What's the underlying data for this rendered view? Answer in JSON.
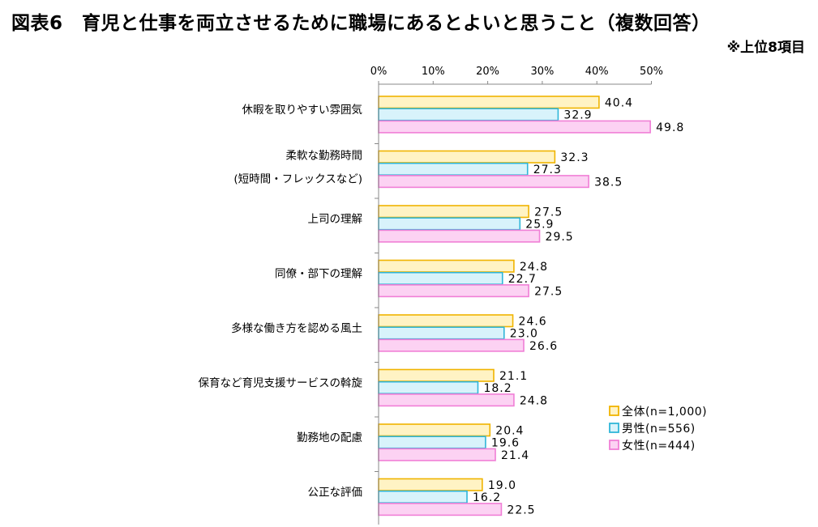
{
  "title": "図表6　育児と仕事を両立させるために職場にあるとよいと思うこと（複数回答）",
  "note": "※上位8項目",
  "chart_data": {
    "type": "bar",
    "orientation": "horizontal",
    "categories": [
      [
        "休暇を取りやすい雰囲気"
      ],
      [
        "柔軟な勤務時間",
        "(短時間・フレックスなど)"
      ],
      [
        "上司の理解"
      ],
      [
        "同僚・部下の理解"
      ],
      [
        "多様な働き方を認める風土"
      ],
      [
        "保育など育児支援サービスの斡旋"
      ],
      [
        "勤務地の配慮"
      ],
      [
        "公正な評価"
      ]
    ],
    "series": [
      {
        "name": "全体(n=1,000)",
        "color": "#f0b400",
        "fill": "#fff3c4",
        "values": [
          40.4,
          32.3,
          27.5,
          24.8,
          24.6,
          21.1,
          20.4,
          19.0
        ]
      },
      {
        "name": "男性(n=556)",
        "color": "#2fb6d8",
        "fill": "#d8f3fb",
        "values": [
          32.9,
          27.3,
          25.9,
          22.7,
          23.0,
          18.2,
          19.6,
          16.2
        ]
      },
      {
        "name": "女性(n=444)",
        "color": "#f07fd6",
        "fill": "#fcd2f3",
        "values": [
          49.8,
          38.5,
          29.5,
          27.5,
          26.6,
          24.8,
          21.4,
          22.5
        ]
      }
    ],
    "value_labels": [
      [
        "40.4",
        "32.9",
        "49.8"
      ],
      [
        "32.3",
        "27.3",
        "38.5"
      ],
      [
        "27.5",
        "25.9",
        "29.5"
      ],
      [
        "24.8",
        "22.7",
        "27.5"
      ],
      [
        "24.6",
        "23.0",
        "26.6"
      ],
      [
        "21.1",
        "18.2",
        "24.8"
      ],
      [
        "20.4",
        "19.6",
        "21.4"
      ],
      [
        "19.0",
        "16.2",
        "22.5"
      ]
    ],
    "xlim": [
      0,
      50
    ],
    "xticks": [
      0,
      10,
      20,
      30,
      40,
      50
    ],
    "xtick_labels": [
      "0%",
      "10%",
      "20%",
      "30%",
      "40%",
      "50%"
    ],
    "legend_position": "right",
    "grid": false
  }
}
